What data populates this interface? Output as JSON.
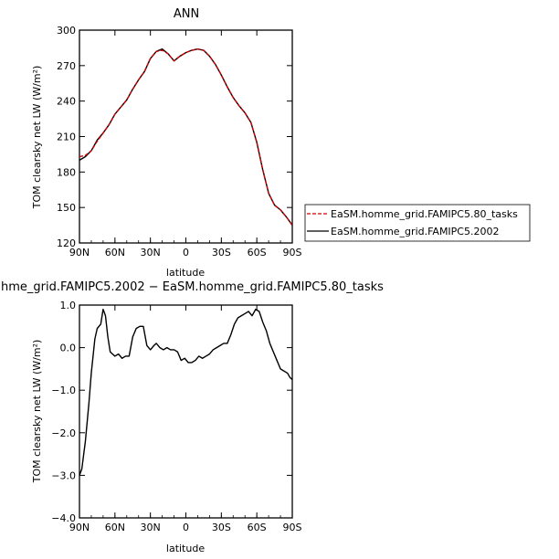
{
  "chart_data": [
    {
      "type": "line",
      "title": "ANN",
      "xlabel": "latitude",
      "ylabel": "TOM clearsky net LW (W/m²)",
      "x_ticks": [
        "90N",
        "60N",
        "30N",
        "0",
        "30S",
        "60S",
        "90S"
      ],
      "y_ticks": [
        "120",
        "150",
        "180",
        "210",
        "240",
        "270",
        "300"
      ],
      "xlim": [
        90,
        -90
      ],
      "ylim": [
        120,
        300
      ],
      "grid": false,
      "legend_position": "right",
      "legend": [
        {
          "label": "EaSM.homme_grid.FAMIPC5.80_tasks",
          "color": "#cc0000",
          "dash": "dashed"
        },
        {
          "label": "EaSM.homme_grid.FAMIPC5.2002",
          "color": "#000000",
          "dash": "solid"
        }
      ],
      "series": [
        {
          "name": "EaSM.homme_grid.FAMIPC5.80_tasks",
          "color": "#cc0000",
          "x": [
            90,
            85,
            80,
            75,
            70,
            65,
            60,
            55,
            50,
            45,
            40,
            35,
            30,
            25,
            20,
            15,
            10,
            5,
            0,
            -5,
            -10,
            -15,
            -20,
            -25,
            -30,
            -35,
            -40,
            -45,
            -50,
            -55,
            -60,
            -65,
            -70,
            -75,
            -80,
            -85,
            -90
          ],
          "y": [
            193,
            194,
            198,
            206,
            213,
            220,
            229,
            235,
            241,
            250,
            258,
            265,
            276,
            282,
            283,
            280,
            274,
            278,
            281,
            283,
            284,
            283,
            278,
            271,
            262,
            252,
            243,
            236,
            230,
            222,
            205,
            182,
            162,
            152,
            148,
            142,
            135
          ]
        },
        {
          "name": "EaSM.homme_grid.FAMIPC5.2002",
          "color": "#000000",
          "x": [
            90,
            85,
            80,
            75,
            70,
            65,
            60,
            55,
            50,
            45,
            40,
            35,
            30,
            25,
            20,
            15,
            10,
            5,
            0,
            -5,
            -10,
            -15,
            -20,
            -25,
            -30,
            -35,
            -40,
            -45,
            -50,
            -55,
            -60,
            -65,
            -70,
            -75,
            -80,
            -85,
            -90
          ],
          "y": [
            190,
            193,
            198,
            207,
            213,
            220,
            229,
            235,
            241,
            250,
            258,
            265,
            276,
            282,
            284,
            280,
            274,
            278,
            281,
            283,
            284,
            283,
            278,
            271,
            262,
            252,
            243,
            236,
            230,
            222,
            205,
            182,
            162,
            152,
            148,
            142,
            135
          ]
        }
      ]
    },
    {
      "type": "line",
      "title": "hme_grid.FAMIPC5.2002 − EaSM.homme_grid.FAMIPC5.80_tasks",
      "xlabel": "latitude",
      "ylabel": "TOM clearsky net LW (W/m²)",
      "x_ticks": [
        "90N",
        "60N",
        "30N",
        "0",
        "30S",
        "60S",
        "90S"
      ],
      "y_ticks": [
        "1.0",
        "0.0",
        "−1.0",
        "−2.0",
        "−3.0",
        "−4.0"
      ],
      "xlim": [
        90,
        -90
      ],
      "ylim": [
        -4.0,
        1.0
      ],
      "grid": false,
      "series": [
        {
          "color": "#000000",
          "x": [
            90,
            88,
            85,
            82,
            80,
            77,
            75,
            72,
            70,
            68,
            66,
            64,
            62,
            60,
            57,
            54,
            51,
            48,
            45,
            42,
            39,
            36,
            33,
            30,
            27,
            25,
            22,
            19,
            16,
            13,
            10,
            7,
            4,
            1,
            -2,
            -5,
            -8,
            -11,
            -14,
            -17,
            -20,
            -23,
            -26,
            -29,
            -32,
            -35,
            -38,
            -41,
            -44,
            -47,
            -50,
            -53,
            -56,
            -59,
            -62,
            -65,
            -68,
            -71,
            -74,
            -77,
            -80,
            -83,
            -86,
            -88,
            -90
          ],
          "y": [
            -3.0,
            -2.85,
            -2.2,
            -1.3,
            -0.6,
            0.2,
            0.45,
            0.55,
            0.9,
            0.75,
            0.25,
            -0.1,
            -0.15,
            -0.2,
            -0.15,
            -0.25,
            -0.2,
            -0.2,
            0.25,
            0.45,
            0.5,
            0.5,
            0.05,
            -0.05,
            0.05,
            0.1,
            0.0,
            -0.05,
            0.0,
            -0.05,
            -0.05,
            -0.1,
            -0.3,
            -0.25,
            -0.35,
            -0.35,
            -0.3,
            -0.2,
            -0.25,
            -0.2,
            -0.15,
            -0.05,
            0.0,
            0.05,
            0.1,
            0.1,
            0.3,
            0.55,
            0.7,
            0.75,
            0.8,
            0.85,
            0.75,
            0.9,
            0.85,
            0.6,
            0.4,
            0.1,
            -0.1,
            -0.3,
            -0.5,
            -0.55,
            -0.6,
            -0.7,
            -0.75
          ]
        }
      ]
    }
  ]
}
